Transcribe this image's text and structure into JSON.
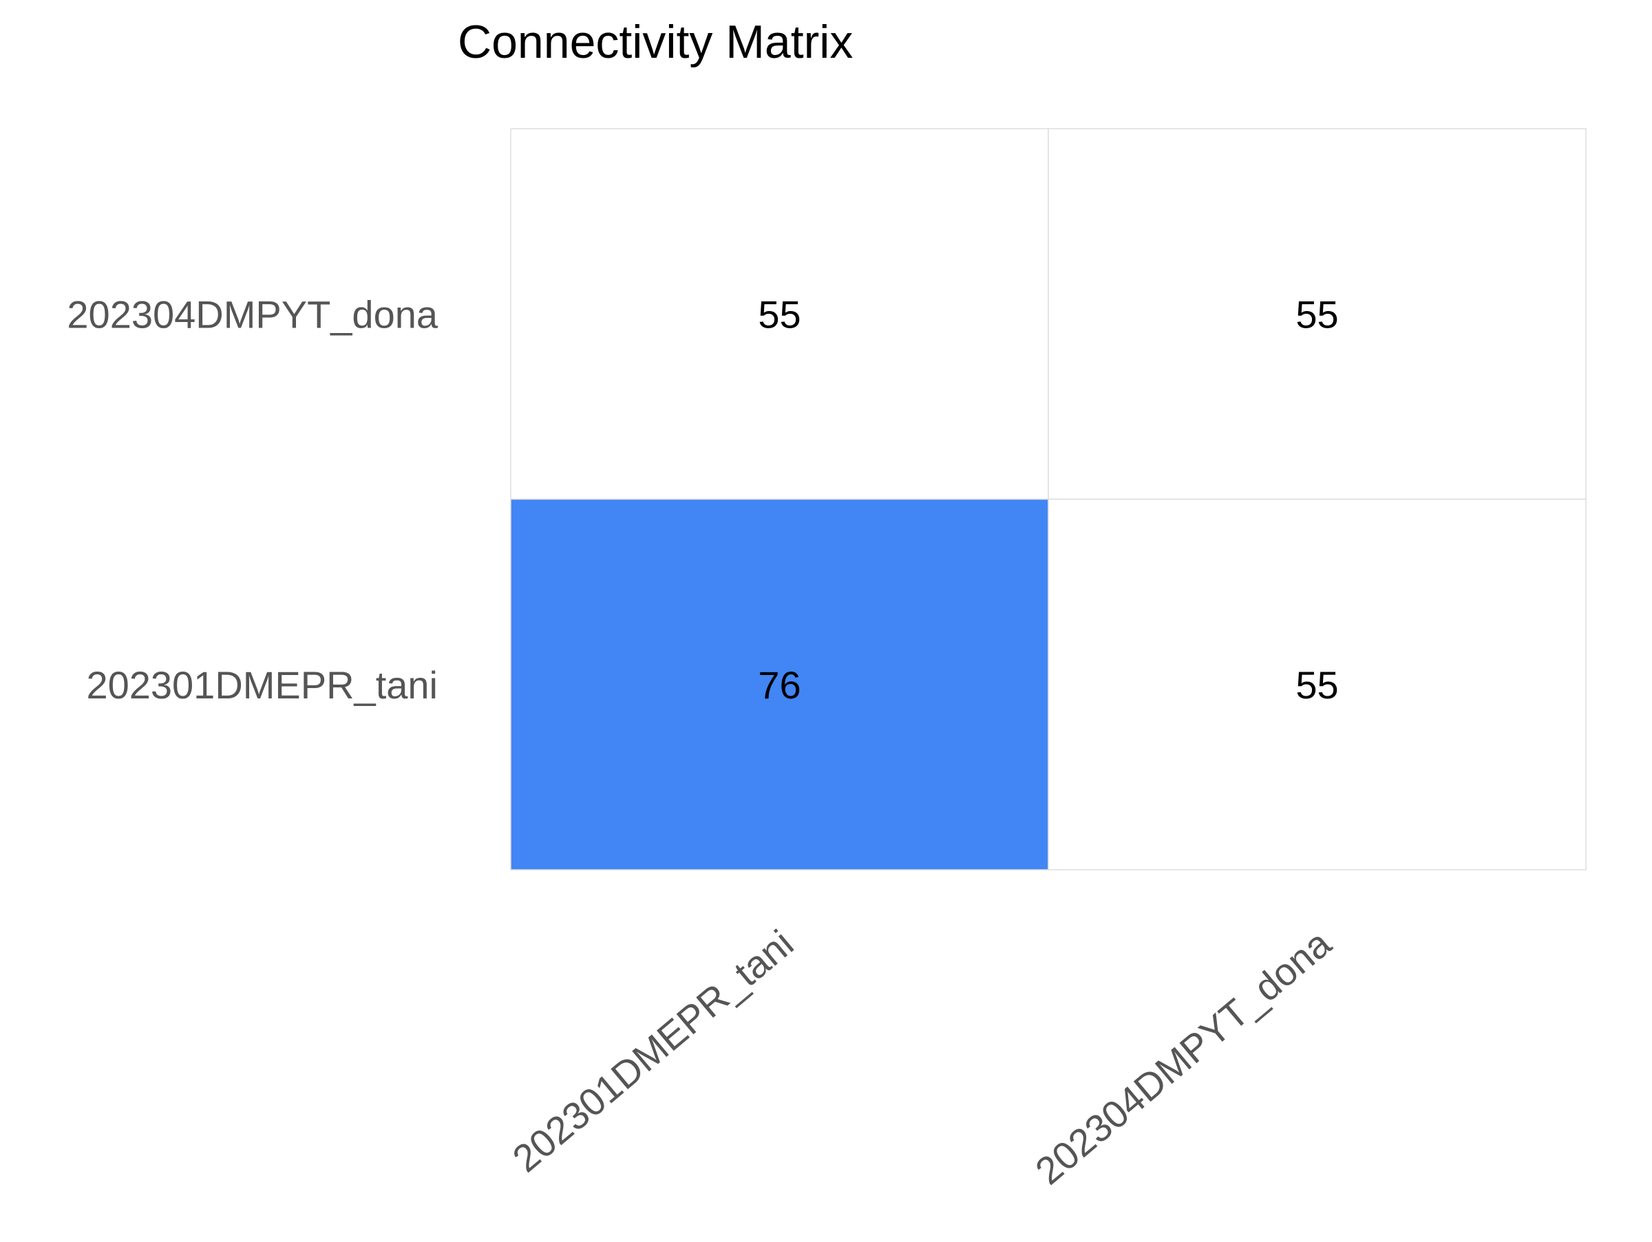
{
  "chart_data": {
    "type": "heatmap",
    "title": "Connectivity Matrix",
    "xlabel": "",
    "ylabel": "",
    "x_categories": [
      "202301DMEPR_tani",
      "202304DMPYT_dona"
    ],
    "y_categories": [
      "202304DMPYT_dona",
      "202301DMEPR_tani"
    ],
    "values": [
      [
        55,
        55
      ],
      [
        76,
        55
      ]
    ],
    "color_low": "#ffffff",
    "color_high": "#4285f4",
    "grid_color": "#dddddd",
    "tick_label_color": "#555555",
    "cell_label_color": "#000000",
    "grid": true,
    "legend": "none"
  }
}
